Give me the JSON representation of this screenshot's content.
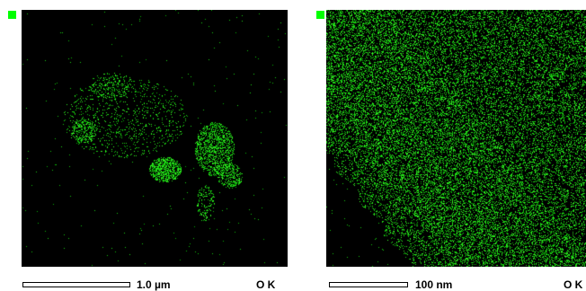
{
  "marker_color": "#00ff00",
  "signal_color": "#22ee22",
  "panels": [
    {
      "scale_label": "1.0 µm",
      "element_label": "O K"
    },
    {
      "scale_label": "100 nm",
      "element_label": "O K"
    }
  ]
}
